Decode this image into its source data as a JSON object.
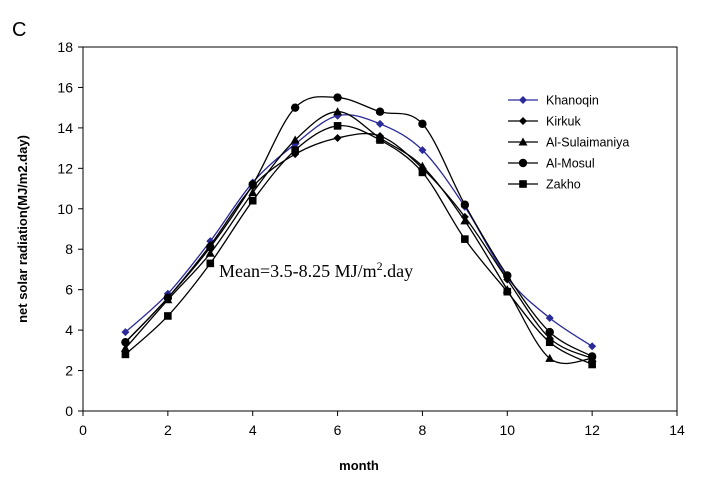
{
  "panel_label": "C",
  "chart_data": {
    "type": "line",
    "title": "",
    "xlabel": "month",
    "ylabel": "net solar radiation(MJ/m2.day)",
    "xlim": [
      0,
      14
    ],
    "ylim": [
      0,
      18
    ],
    "xticks": [
      0,
      2,
      4,
      6,
      8,
      10,
      12,
      14
    ],
    "yticks": [
      0,
      2,
      4,
      6,
      8,
      10,
      12,
      14,
      16,
      18
    ],
    "grid": false,
    "legend_position": "top-right",
    "annotation": {
      "prefix": "Mean=3.5-8.25 MJ/m",
      "superscript": "2",
      "suffix": ".day"
    },
    "series": [
      {
        "name": "Khanoqin",
        "marker": "diamond",
        "color": "#2a2a9a",
        "x": [
          1,
          2,
          3,
          4,
          5,
          6,
          7,
          8,
          9,
          10,
          11,
          12
        ],
        "y": [
          3.9,
          5.8,
          8.4,
          11.3,
          13.2,
          14.6,
          14.2,
          12.9,
          10.1,
          6.6,
          4.6,
          3.2
        ]
      },
      {
        "name": "Kirkuk",
        "marker": "diamond",
        "color": "#000000",
        "x": [
          1,
          2,
          3,
          4,
          5,
          6,
          7,
          8,
          9,
          10,
          11,
          12
        ],
        "y": [
          3.4,
          5.6,
          8.2,
          11.1,
          12.7,
          13.5,
          13.6,
          12.0,
          9.6,
          6.5,
          3.6,
          2.6
        ]
      },
      {
        "name": "Al-Sulaimaniya",
        "marker": "triangle",
        "color": "#000000",
        "x": [
          1,
          2,
          3,
          4,
          5,
          6,
          7,
          8,
          9,
          10,
          11,
          12
        ],
        "y": [
          3.1,
          5.5,
          7.8,
          10.8,
          13.4,
          14.8,
          13.5,
          12.1,
          9.4,
          6.0,
          2.6,
          2.6
        ]
      },
      {
        "name": "Al-Mosul",
        "marker": "circle",
        "color": "#000000",
        "x": [
          1,
          2,
          3,
          4,
          5,
          6,
          7,
          8,
          9,
          10,
          11,
          12
        ],
        "y": [
          3.4,
          5.6,
          8.1,
          11.2,
          15.0,
          15.5,
          14.8,
          14.2,
          10.2,
          6.7,
          3.9,
          2.7
        ]
      },
      {
        "name": "Zakho",
        "marker": "square",
        "color": "#000000",
        "x": [
          1,
          2,
          3,
          4,
          5,
          6,
          7,
          8,
          9,
          10,
          11,
          12
        ],
        "y": [
          2.8,
          4.7,
          7.3,
          10.4,
          12.9,
          14.1,
          13.4,
          11.8,
          8.5,
          5.9,
          3.4,
          2.3
        ]
      }
    ]
  }
}
